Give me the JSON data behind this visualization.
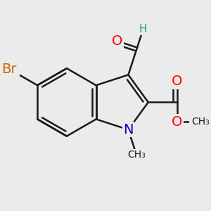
{
  "background_color": "#ebebeb",
  "bond_color": "#1a1a1a",
  "bond_width": 1.8,
  "atom_colors": {
    "O": "#ff0000",
    "N": "#0000cd",
    "Br": "#cc6600",
    "H": "#2e8b8b",
    "C": "#1a1a1a"
  },
  "font_size_atoms": 14,
  "font_size_small": 11,
  "figsize": [
    3.0,
    3.0
  ],
  "dpi": 100
}
